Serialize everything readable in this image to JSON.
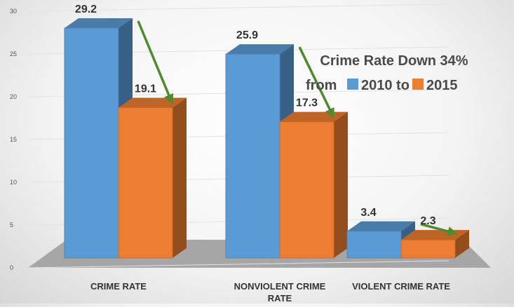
{
  "chart_data": {
    "type": "bar",
    "categories": [
      "CRIME RATE",
      "NONVIOLENT CRIME RATE",
      "VIOLENT CRIME RATE"
    ],
    "category_lines": [
      [
        "CRIME RATE"
      ],
      [
        "NONVIOLENT CRIME",
        "RATE"
      ],
      [
        "VIOLENT CRIME RATE"
      ]
    ],
    "series": [
      {
        "name": "2010",
        "values": [
          29.2,
          25.9,
          3.4
        ],
        "color": "#5b9bd5"
      },
      {
        "name": "2015",
        "values": [
          19.1,
          17.3,
          2.3
        ],
        "color": "#ed7d31"
      }
    ],
    "data_labels": [
      [
        "29.2",
        "25.9",
        "3.4"
      ],
      [
        "19.1",
        "17.3",
        "2.3"
      ]
    ],
    "yticks": [
      0,
      5,
      10,
      15,
      20,
      25,
      30
    ],
    "ylim": [
      0,
      30
    ],
    "grid": true,
    "annotation": {
      "line1": "Crime Rate Down 34%",
      "line2_prefix": "from",
      "line2_series1": "2010 to",
      "line2_series2": "2015"
    },
    "arrow_color": "#4e8a2e",
    "text_color": "#333333"
  }
}
